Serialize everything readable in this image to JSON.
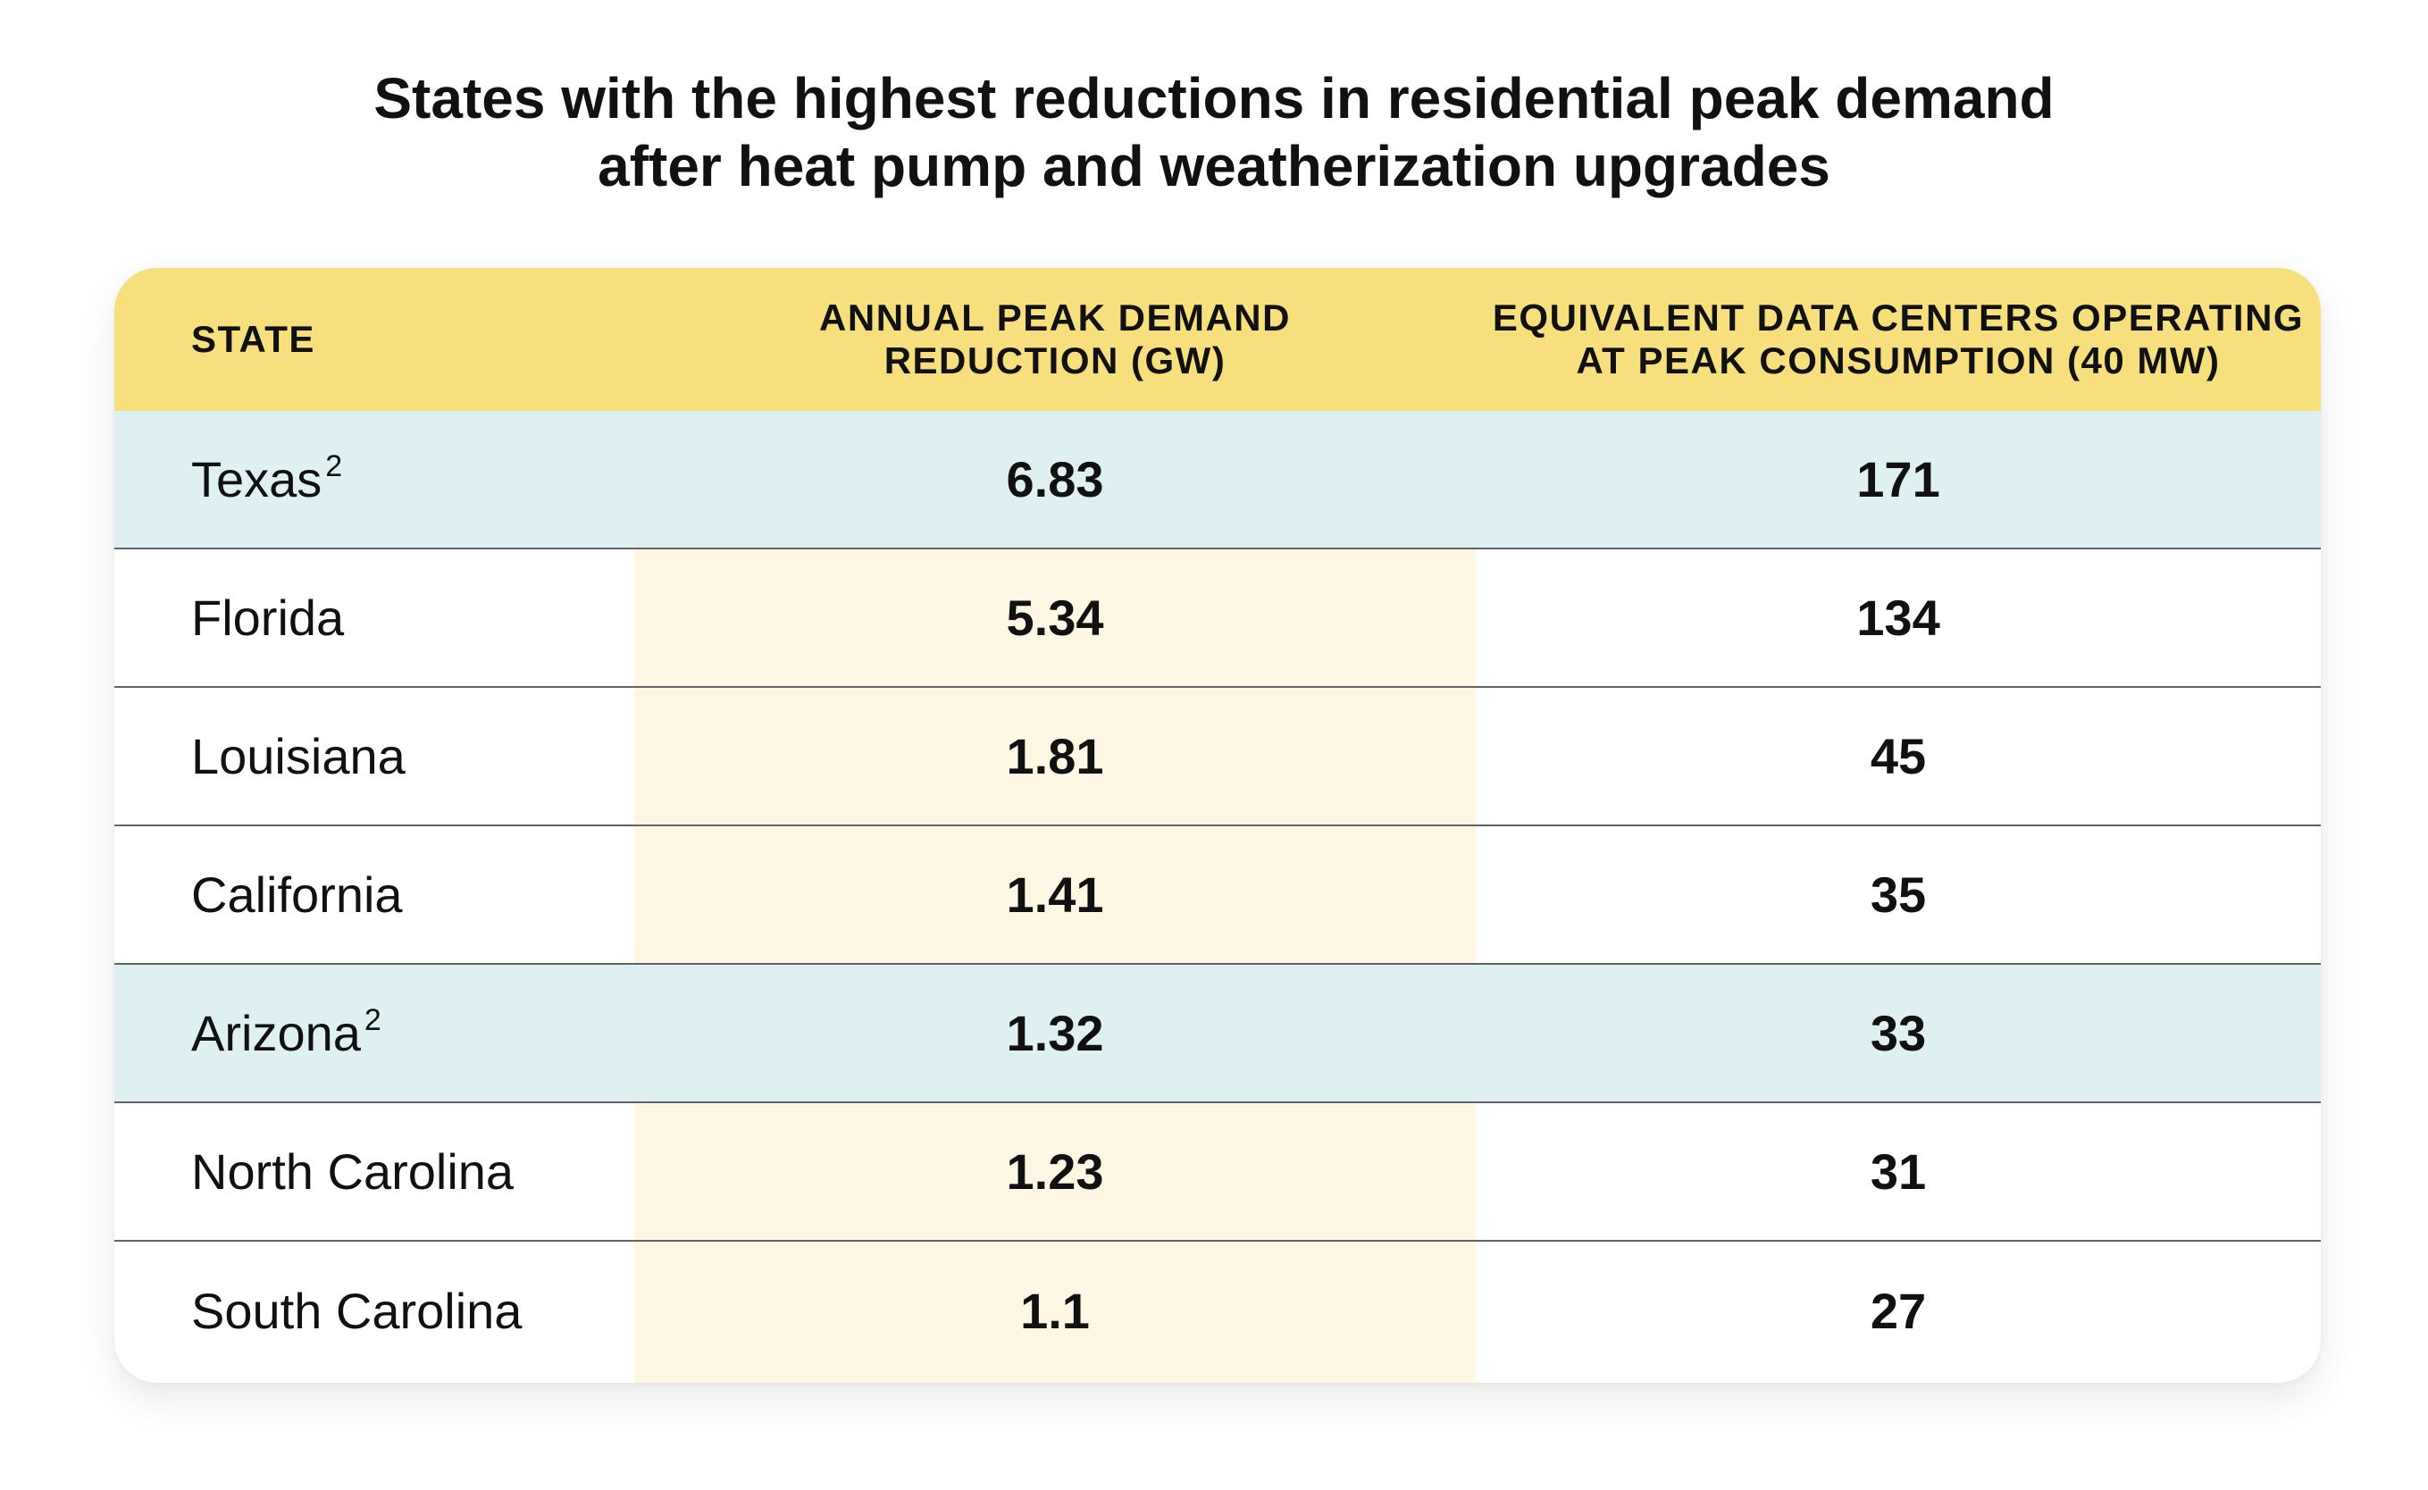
{
  "title": {
    "line1": "States with the highest reductions in residential peak demand",
    "line2": "after heat pump and weatherization upgrades"
  },
  "colors": {
    "header_bg": "#f7df7e",
    "highlight_row_bg": "#def0f1",
    "reduction_column_bg": "#fdf7e4"
  },
  "chart_data": {
    "type": "table",
    "columns": [
      {
        "line1": "STATE",
        "line2": ""
      },
      {
        "line1": "ANNUAL PEAK DEMAND",
        "line2": "REDUCTION (GW)"
      },
      {
        "line1": "EQUIVALENT DATA CENTERS OPERATING",
        "line2": "AT PEAK CONSUMPTION (40 MW)"
      }
    ],
    "rows": [
      {
        "state": "Texas",
        "footnote": "2",
        "reduction_gw": "6.83",
        "data_centers": "171",
        "highlight": true
      },
      {
        "state": "Florida",
        "footnote": "",
        "reduction_gw": "5.34",
        "data_centers": "134",
        "highlight": false
      },
      {
        "state": "Louisiana",
        "footnote": "",
        "reduction_gw": "1.81",
        "data_centers": "45",
        "highlight": false
      },
      {
        "state": "California",
        "footnote": "",
        "reduction_gw": "1.41",
        "data_centers": "35",
        "highlight": false
      },
      {
        "state": "Arizona",
        "footnote": "2",
        "reduction_gw": "1.32",
        "data_centers": "33",
        "highlight": true
      },
      {
        "state": "North Carolina",
        "footnote": "",
        "reduction_gw": "1.23",
        "data_centers": "31",
        "highlight": false
      },
      {
        "state": "South Carolina",
        "footnote": "",
        "reduction_gw": "1.1",
        "data_centers": "27",
        "highlight": false
      }
    ]
  }
}
